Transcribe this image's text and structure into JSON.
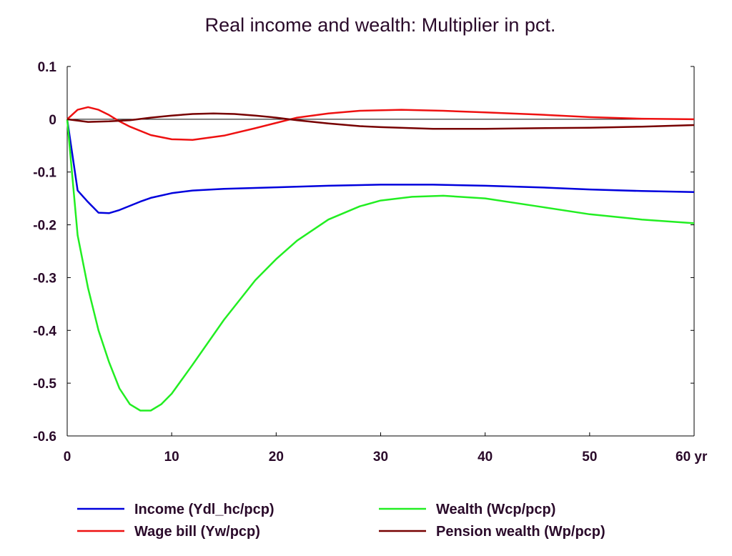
{
  "chart_data": {
    "type": "line",
    "title": "Real income and wealth: Multiplier in pct.",
    "xlim": [
      0,
      60
    ],
    "ylim": [
      -0.6,
      0.1
    ],
    "x_ticks": [
      "0",
      "10",
      "20",
      "30",
      "40",
      "50",
      "60 yr"
    ],
    "y_ticks": [
      "0.1",
      "0",
      "-0.1",
      "-0.2",
      "-0.3",
      "-0.4",
      "-0.5",
      "-0.6"
    ],
    "grid": false,
    "legend_position": "bottom",
    "series": [
      {
        "name": "Income (Ydl_hc/pcp)",
        "color": "#0000dd",
        "x": [
          0,
          1,
          2,
          3,
          4,
          5,
          6,
          7,
          8,
          10,
          12,
          15,
          20,
          25,
          30,
          35,
          40,
          45,
          50,
          55,
          60
        ],
        "y": [
          0,
          -0.135,
          -0.157,
          -0.177,
          -0.178,
          -0.172,
          -0.164,
          -0.156,
          -0.149,
          -0.14,
          -0.135,
          -0.132,
          -0.129,
          -0.126,
          -0.124,
          -0.124,
          -0.126,
          -0.129,
          -0.133,
          -0.136,
          -0.138
        ]
      },
      {
        "name": "Wage bill (Yw/pcp)",
        "color": "#ee1111",
        "x": [
          0,
          1,
          2,
          3,
          4,
          5,
          6,
          8,
          10,
          12,
          15,
          18,
          20,
          22,
          25,
          28,
          32,
          36,
          40,
          45,
          50,
          55,
          60
        ],
        "y": [
          0,
          0.018,
          0.023,
          0.018,
          0.008,
          -0.004,
          -0.014,
          -0.03,
          -0.038,
          -0.039,
          -0.031,
          -0.017,
          -0.007,
          0.003,
          0.011,
          0.016,
          0.018,
          0.016,
          0.013,
          0.009,
          0.004,
          0.001,
          0
        ]
      },
      {
        "name": "Wealth (Wcp/pcp)",
        "color": "#22ee22",
        "x": [
          0,
          1,
          2,
          3,
          4,
          5,
          6,
          7,
          8,
          9,
          10,
          12,
          15,
          18,
          20,
          22,
          25,
          28,
          30,
          33,
          36,
          40,
          45,
          50,
          55,
          60
        ],
        "y": [
          0,
          -0.22,
          -0.32,
          -0.4,
          -0.46,
          -0.51,
          -0.54,
          -0.552,
          -0.552,
          -0.54,
          -0.52,
          -0.465,
          -0.38,
          -0.305,
          -0.265,
          -0.23,
          -0.19,
          -0.165,
          -0.154,
          -0.147,
          -0.145,
          -0.15,
          -0.165,
          -0.18,
          -0.19,
          -0.197
        ]
      },
      {
        "name": "Pension wealth (Wp/pcp)",
        "color": "#770000",
        "x": [
          0,
          2,
          4,
          6,
          8,
          10,
          12,
          14,
          16,
          18,
          20,
          22,
          25,
          28,
          30,
          35,
          40,
          45,
          50,
          55,
          60
        ],
        "y": [
          0,
          -0.005,
          -0.004,
          -0.002,
          0.003,
          0.007,
          0.01,
          0.011,
          0.01,
          0.007,
          0.003,
          -0.002,
          -0.008,
          -0.013,
          -0.015,
          -0.018,
          -0.018,
          -0.017,
          -0.016,
          -0.014,
          -0.011
        ]
      }
    ]
  }
}
